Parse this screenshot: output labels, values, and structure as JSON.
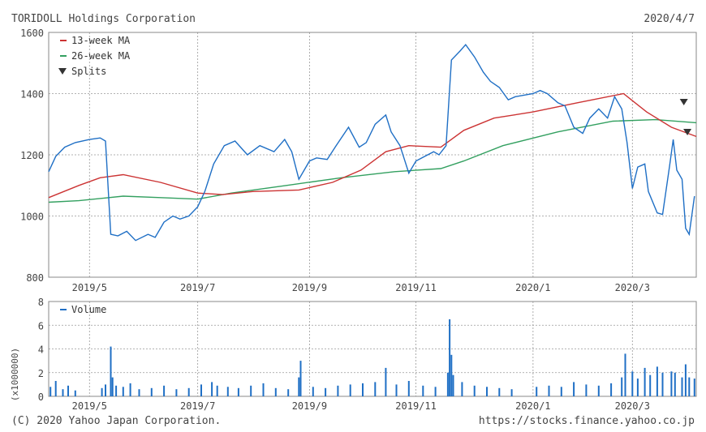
{
  "header": {
    "title": "TORIDOLL Holdings Corporation",
    "date": "2020/4/7"
  },
  "footer": {
    "copyright": "(C) 2020 Yahoo Japan Corporation.",
    "url": "https://stocks.finance.yahoo.co.jp"
  },
  "colors": {
    "price": "#1f6fc5",
    "ma13": "#cc3333",
    "ma26": "#33a060",
    "volume": "#1f6fc5",
    "grid": "#999999",
    "split": "#333333"
  },
  "chart_data": [
    {
      "type": "line",
      "xlim": [
        "2019-04-08",
        "2020-04-07"
      ],
      "ylim": [
        800,
        1600
      ],
      "yticks": [
        800,
        1000,
        1200,
        1400,
        1600
      ],
      "xticks": [
        {
          "date": "2019-05-01",
          "label": "2019/5"
        },
        {
          "date": "2019-07-01",
          "label": "2019/7"
        },
        {
          "date": "2019-09-02",
          "label": "2019/9"
        },
        {
          "date": "2019-11-01",
          "label": "2019/11"
        },
        {
          "date": "2020-01-06",
          "label": "2020/1"
        },
        {
          "date": "2020-03-02",
          "label": "2020/3"
        }
      ],
      "grid": true,
      "legend_position": "top-left",
      "legend": [
        "13-week MA",
        "26-week MA",
        "Splits"
      ],
      "series": [
        {
          "name": "price",
          "points": [
            [
              "2019-04-08",
              1145
            ],
            [
              "2019-04-12",
              1195
            ],
            [
              "2019-04-17",
              1225
            ],
            [
              "2019-04-23",
              1240
            ],
            [
              "2019-05-01",
              1250
            ],
            [
              "2019-05-07",
              1255
            ],
            [
              "2019-05-10",
              1245
            ],
            [
              "2019-05-13",
              940
            ],
            [
              "2019-05-17",
              935
            ],
            [
              "2019-05-22",
              950
            ],
            [
              "2019-05-27",
              920
            ],
            [
              "2019-06-03",
              940
            ],
            [
              "2019-06-07",
              930
            ],
            [
              "2019-06-12",
              980
            ],
            [
              "2019-06-17",
              1000
            ],
            [
              "2019-06-21",
              990
            ],
            [
              "2019-06-26",
              1000
            ],
            [
              "2019-07-01",
              1030
            ],
            [
              "2019-07-05",
              1080
            ],
            [
              "2019-07-10",
              1170
            ],
            [
              "2019-07-16",
              1230
            ],
            [
              "2019-07-22",
              1245
            ],
            [
              "2019-07-29",
              1200
            ],
            [
              "2019-08-05",
              1230
            ],
            [
              "2019-08-13",
              1210
            ],
            [
              "2019-08-19",
              1250
            ],
            [
              "2019-08-23",
              1210
            ],
            [
              "2019-08-27",
              1120
            ],
            [
              "2019-09-02",
              1180
            ],
            [
              "2019-09-06",
              1190
            ],
            [
              "2019-09-12",
              1185
            ],
            [
              "2019-09-17",
              1230
            ],
            [
              "2019-09-24",
              1290
            ],
            [
              "2019-09-30",
              1225
            ],
            [
              "2019-10-04",
              1240
            ],
            [
              "2019-10-09",
              1300
            ],
            [
              "2019-10-15",
              1330
            ],
            [
              "2019-10-18",
              1275
            ],
            [
              "2019-10-23",
              1230
            ],
            [
              "2019-10-28",
              1140
            ],
            [
              "2019-11-01",
              1180
            ],
            [
              "2019-11-06",
              1195
            ],
            [
              "2019-11-11",
              1210
            ],
            [
              "2019-11-14",
              1200
            ],
            [
              "2019-11-18",
              1230
            ],
            [
              "2019-11-21",
              1510
            ],
            [
              "2019-11-26",
              1540
            ],
            [
              "2019-11-29",
              1560
            ],
            [
              "2019-12-04",
              1520
            ],
            [
              "2019-12-09",
              1470
            ],
            [
              "2019-12-13",
              1440
            ],
            [
              "2019-12-18",
              1420
            ],
            [
              "2019-12-23",
              1380
            ],
            [
              "2019-12-27",
              1390
            ],
            [
              "2020-01-06",
              1400
            ],
            [
              "2020-01-10",
              1410
            ],
            [
              "2020-01-14",
              1400
            ],
            [
              "2020-01-20",
              1370
            ],
            [
              "2020-01-24",
              1360
            ],
            [
              "2020-01-29",
              1290
            ],
            [
              "2020-02-03",
              1270
            ],
            [
              "2020-02-07",
              1320
            ],
            [
              "2020-02-12",
              1350
            ],
            [
              "2020-02-17",
              1320
            ],
            [
              "2020-02-21",
              1390
            ],
            [
              "2020-02-25",
              1350
            ],
            [
              "2020-02-28",
              1240
            ],
            [
              "2020-03-02",
              1090
            ],
            [
              "2020-03-05",
              1160
            ],
            [
              "2020-03-09",
              1170
            ],
            [
              "2020-03-11",
              1080
            ],
            [
              "2020-03-16",
              1010
            ],
            [
              "2020-03-19",
              1005
            ],
            [
              "2020-03-23",
              1165
            ],
            [
              "2020-03-25",
              1250
            ],
            [
              "2020-03-27",
              1150
            ],
            [
              "2020-03-30",
              1120
            ],
            [
              "2020-04-01",
              960
            ],
            [
              "2020-04-03",
              940
            ],
            [
              "2020-04-06",
              1065
            ]
          ]
        },
        {
          "name": "13-week MA",
          "points": [
            [
              "2019-04-08",
              1060
            ],
            [
              "2019-04-25",
              1100
            ],
            [
              "2019-05-07",
              1125
            ],
            [
              "2019-05-20",
              1135
            ],
            [
              "2019-06-10",
              1110
            ],
            [
              "2019-07-01",
              1075
            ],
            [
              "2019-07-15",
              1070
            ],
            [
              "2019-08-01",
              1080
            ],
            [
              "2019-08-27",
              1085
            ],
            [
              "2019-09-15",
              1110
            ],
            [
              "2019-10-01",
              1150
            ],
            [
              "2019-10-15",
              1210
            ],
            [
              "2019-10-28",
              1230
            ],
            [
              "2019-11-15",
              1225
            ],
            [
              "2019-11-28",
              1280
            ],
            [
              "2019-12-15",
              1320
            ],
            [
              "2020-01-06",
              1340
            ],
            [
              "2020-01-31",
              1370
            ],
            [
              "2020-02-26",
              1400
            ],
            [
              "2020-03-10",
              1340
            ],
            [
              "2020-03-24",
              1290
            ],
            [
              "2020-04-07",
              1260
            ]
          ]
        },
        {
          "name": "26-week MA",
          "points": [
            [
              "2019-04-08",
              1045
            ],
            [
              "2019-04-25",
              1050
            ],
            [
              "2019-05-20",
              1065
            ],
            [
              "2019-06-10",
              1060
            ],
            [
              "2019-07-01",
              1055
            ],
            [
              "2019-07-20",
              1075
            ],
            [
              "2019-08-20",
              1100
            ],
            [
              "2019-09-20",
              1125
            ],
            [
              "2019-10-20",
              1145
            ],
            [
              "2019-11-15",
              1155
            ],
            [
              "2019-11-28",
              1180
            ],
            [
              "2019-12-20",
              1230
            ],
            [
              "2020-01-20",
              1275
            ],
            [
              "2020-02-20",
              1310
            ],
            [
              "2020-03-15",
              1315
            ],
            [
              "2020-04-07",
              1305
            ]
          ]
        }
      ],
      "splits": [
        "2020-03-31",
        "2020-04-02"
      ]
    },
    {
      "type": "bar",
      "ylabel": "(x1000000)",
      "ylim": [
        0,
        8
      ],
      "yticks": [
        0,
        2,
        4,
        6,
        8
      ],
      "legend": [
        "Volume"
      ],
      "volume_points": [
        [
          "2019-04-09",
          0.8
        ],
        [
          "2019-04-12",
          1.3
        ],
        [
          "2019-04-16",
          0.6
        ],
        [
          "2019-04-19",
          0.9
        ],
        [
          "2019-04-23",
          0.5
        ],
        [
          "2019-05-08",
          0.7
        ],
        [
          "2019-05-10",
          1.0
        ],
        [
          "2019-05-13",
          4.2
        ],
        [
          "2019-05-14",
          1.6
        ],
        [
          "2019-05-16",
          0.9
        ],
        [
          "2019-05-20",
          0.8
        ],
        [
          "2019-05-24",
          1.1
        ],
        [
          "2019-05-29",
          0.6
        ],
        [
          "2019-06-05",
          0.7
        ],
        [
          "2019-06-12",
          0.9
        ],
        [
          "2019-06-19",
          0.6
        ],
        [
          "2019-06-26",
          0.7
        ],
        [
          "2019-07-03",
          1.0
        ],
        [
          "2019-07-09",
          1.2
        ],
        [
          "2019-07-12",
          0.9
        ],
        [
          "2019-07-18",
          0.8
        ],
        [
          "2019-07-24",
          0.7
        ],
        [
          "2019-07-31",
          0.9
        ],
        [
          "2019-08-07",
          1.1
        ],
        [
          "2019-08-14",
          0.7
        ],
        [
          "2019-08-21",
          0.6
        ],
        [
          "2019-08-27",
          1.6
        ],
        [
          "2019-08-28",
          3.0
        ],
        [
          "2019-09-04",
          0.8
        ],
        [
          "2019-09-11",
          0.7
        ],
        [
          "2019-09-18",
          0.9
        ],
        [
          "2019-09-25",
          1.0
        ],
        [
          "2019-10-02",
          1.1
        ],
        [
          "2019-10-09",
          1.2
        ],
        [
          "2019-10-15",
          2.4
        ],
        [
          "2019-10-21",
          1.0
        ],
        [
          "2019-10-28",
          1.3
        ],
        [
          "2019-11-05",
          0.9
        ],
        [
          "2019-11-12",
          0.8
        ],
        [
          "2019-11-19",
          2.0
        ],
        [
          "2019-11-20",
          6.5
        ],
        [
          "2019-11-21",
          3.5
        ],
        [
          "2019-11-22",
          1.8
        ],
        [
          "2019-11-27",
          1.2
        ],
        [
          "2019-12-04",
          0.9
        ],
        [
          "2019-12-11",
          0.8
        ],
        [
          "2019-12-18",
          0.7
        ],
        [
          "2019-12-25",
          0.6
        ],
        [
          "2020-01-08",
          0.8
        ],
        [
          "2020-01-15",
          0.9
        ],
        [
          "2020-01-22",
          0.8
        ],
        [
          "2020-01-29",
          1.2
        ],
        [
          "2020-02-05",
          1.0
        ],
        [
          "2020-02-12",
          0.9
        ],
        [
          "2020-02-19",
          1.1
        ],
        [
          "2020-02-25",
          1.6
        ],
        [
          "2020-02-27",
          3.6
        ],
        [
          "2020-03-02",
          2.1
        ],
        [
          "2020-03-05",
          1.5
        ],
        [
          "2020-03-09",
          2.4
        ],
        [
          "2020-03-12",
          1.8
        ],
        [
          "2020-03-16",
          2.5
        ],
        [
          "2020-03-19",
          2.0
        ],
        [
          "2020-03-24",
          2.1
        ],
        [
          "2020-03-26",
          2.0
        ],
        [
          "2020-03-30",
          1.6
        ],
        [
          "2020-04-01",
          2.7
        ],
        [
          "2020-04-03",
          1.6
        ],
        [
          "2020-04-06",
          1.5
        ]
      ]
    }
  ]
}
